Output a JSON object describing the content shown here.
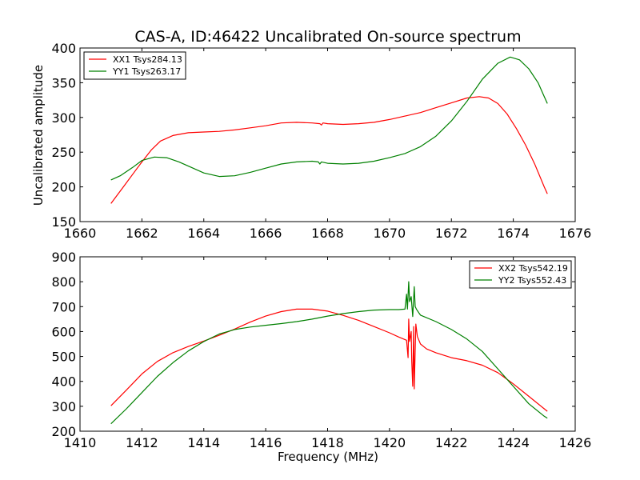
{
  "figure": {
    "title": "CAS-A, ID:46422 Uncalibrated On-source spectrum",
    "ylabel": "Uncalibrated amplitude",
    "xlabel": "Frequency (MHz)",
    "colors": {
      "red": "#ff0000",
      "green": "#008000",
      "frame": "#000000",
      "background": "#ffffff"
    }
  },
  "chart_data": [
    {
      "type": "line",
      "title": "CAS-A, ID:46422 Uncalibrated On-source spectrum",
      "xlabel": "",
      "ylabel": "Uncalibrated amplitude",
      "xlim": [
        1660,
        1676
      ],
      "ylim": [
        150,
        400
      ],
      "xticks": [
        1660,
        1662,
        1664,
        1666,
        1668,
        1670,
        1672,
        1674,
        1676
      ],
      "yticks": [
        150,
        200,
        250,
        300,
        350,
        400
      ],
      "grid": false,
      "legend_position": "top-left",
      "series": [
        {
          "name": "XX1 Tsys284.13",
          "color": "#ff0000",
          "x": [
            1661.0,
            1661.4,
            1661.8,
            1662.0,
            1662.3,
            1662.6,
            1663.0,
            1663.5,
            1664.0,
            1664.5,
            1665.0,
            1665.5,
            1666.0,
            1666.5,
            1667.0,
            1667.5,
            1667.75,
            1667.8,
            1667.85,
            1668.0,
            1668.5,
            1669.0,
            1669.5,
            1670.0,
            1670.5,
            1671.0,
            1671.5,
            1672.0,
            1672.5,
            1672.9,
            1673.2,
            1673.5,
            1673.8,
            1674.1,
            1674.4,
            1674.7,
            1675.0,
            1675.1
          ],
          "y": [
            176,
            200,
            224,
            236,
            253,
            266,
            274,
            278,
            279,
            280,
            282,
            285,
            288,
            292,
            293,
            292,
            291,
            289,
            292,
            291,
            290,
            291,
            293,
            297,
            302,
            307,
            314,
            321,
            328,
            330,
            328,
            320,
            305,
            284,
            260,
            232,
            200,
            190
          ]
        },
        {
          "name": "YY1 Tsys263.17",
          "color": "#008000",
          "x": [
            1661.0,
            1661.3,
            1661.7,
            1662.0,
            1662.4,
            1662.8,
            1663.2,
            1663.6,
            1664.0,
            1664.5,
            1665.0,
            1665.5,
            1666.0,
            1666.5,
            1667.0,
            1667.5,
            1667.7,
            1667.75,
            1667.8,
            1668.0,
            1668.5,
            1669.0,
            1669.5,
            1670.0,
            1670.5,
            1671.0,
            1671.5,
            1672.0,
            1672.5,
            1673.0,
            1673.5,
            1673.9,
            1674.2,
            1674.5,
            1674.8,
            1675.0,
            1675.1
          ],
          "y": [
            210,
            216,
            228,
            238,
            243,
            242,
            236,
            228,
            220,
            215,
            216,
            221,
            227,
            233,
            236,
            237,
            236,
            233,
            236,
            234,
            233,
            234,
            237,
            242,
            248,
            258,
            273,
            295,
            323,
            355,
            378,
            387,
            383,
            370,
            350,
            330,
            320
          ]
        }
      ]
    },
    {
      "type": "line",
      "title": "",
      "xlabel": "Frequency (MHz)",
      "ylabel": "",
      "xlim": [
        1410,
        1426
      ],
      "ylim": [
        200,
        900
      ],
      "xticks": [
        1410,
        1412,
        1414,
        1416,
        1418,
        1420,
        1422,
        1424,
        1426
      ],
      "yticks": [
        200,
        300,
        400,
        500,
        600,
        700,
        800,
        900
      ],
      "grid": false,
      "legend_position": "top-right",
      "series": [
        {
          "name": "XX2 Tsys542.19",
          "color": "#ff0000",
          "x": [
            1411.0,
            1411.5,
            1412.0,
            1412.5,
            1413.0,
            1413.5,
            1414.0,
            1414.5,
            1415.0,
            1415.5,
            1416.0,
            1416.5,
            1417.0,
            1417.5,
            1418.0,
            1418.5,
            1419.0,
            1419.5,
            1420.0,
            1420.3,
            1420.55,
            1420.6,
            1420.62,
            1420.65,
            1420.7,
            1420.72,
            1420.75,
            1420.78,
            1420.8,
            1420.85,
            1420.9,
            1421.0,
            1421.2,
            1421.5,
            1422.0,
            1422.5,
            1423.0,
            1423.5,
            1424.0,
            1424.5,
            1425.0,
            1425.1
          ],
          "y": [
            302,
            365,
            430,
            480,
            515,
            540,
            562,
            585,
            610,
            638,
            662,
            680,
            690,
            690,
            682,
            665,
            645,
            620,
            595,
            578,
            565,
            495,
            650,
            560,
            600,
            480,
            380,
            620,
            370,
            630,
            580,
            550,
            530,
            515,
            495,
            483,
            465,
            435,
            390,
            340,
            290,
            280
          ]
        },
        {
          "name": "YY2 Tsys552.43",
          "color": "#008000",
          "x": [
            1411.0,
            1411.5,
            1412.0,
            1412.5,
            1413.0,
            1413.5,
            1414.0,
            1414.5,
            1415.0,
            1415.5,
            1416.0,
            1416.5,
            1417.0,
            1417.5,
            1418.0,
            1418.5,
            1419.0,
            1419.5,
            1420.0,
            1420.3,
            1420.5,
            1420.55,
            1420.58,
            1420.62,
            1420.65,
            1420.7,
            1420.75,
            1420.8,
            1420.83,
            1420.87,
            1420.95,
            1421.0,
            1421.5,
            1422.0,
            1422.5,
            1423.0,
            1423.5,
            1424.0,
            1424.5,
            1425.0,
            1425.1
          ],
          "y": [
            230,
            290,
            355,
            420,
            475,
            522,
            560,
            590,
            608,
            618,
            625,
            632,
            640,
            650,
            662,
            672,
            680,
            686,
            688,
            688,
            690,
            750,
            690,
            800,
            720,
            740,
            660,
            780,
            700,
            690,
            675,
            666,
            640,
            608,
            570,
            520,
            450,
            380,
            310,
            260,
            252
          ]
        }
      ]
    }
  ]
}
